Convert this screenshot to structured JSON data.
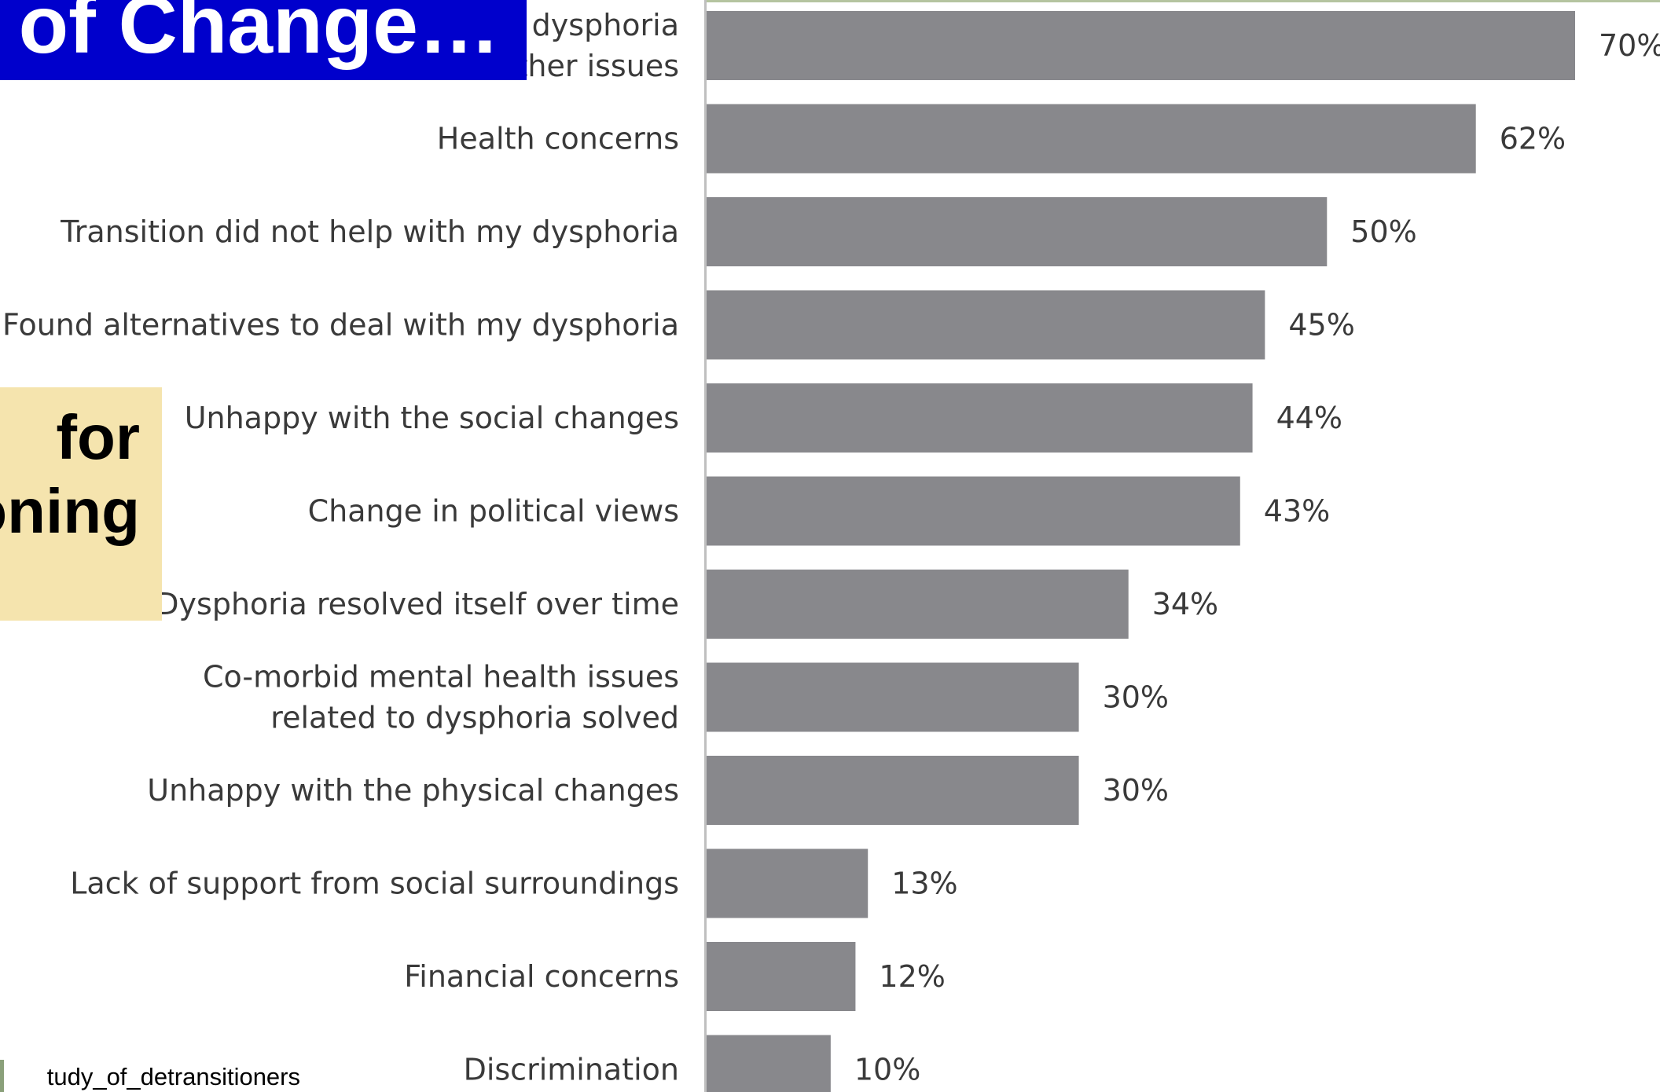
{
  "chart_data": {
    "type": "bar",
    "orientation": "horizontal",
    "categories": [
      [
        "dysphoria",
        "ther issues"
      ],
      [
        "Health concerns"
      ],
      [
        "Transition did not help with my dysphoria"
      ],
      [
        "Found alternatives to deal with my dysphoria"
      ],
      [
        "Unhappy with the social changes"
      ],
      [
        "Change in political views"
      ],
      [
        "Dysphoria resolved itself over time"
      ],
      [
        "Co-morbid mental health issues",
        "related to dysphoria solved"
      ],
      [
        "Unhappy with the physical changes"
      ],
      [
        "Lack of support from social surroundings"
      ],
      [
        "Financial concerns"
      ],
      [
        "Discrimination"
      ]
    ],
    "values": [
      70,
      62,
      50,
      45,
      44,
      43,
      34,
      30,
      30,
      13,
      12,
      10
    ],
    "value_labels": [
      "70%",
      "62%",
      "50%",
      "45%",
      "44%",
      "43%",
      "34%",
      "30%",
      "30%",
      "13%",
      "12%",
      "10%"
    ],
    "xlim": [
      0,
      70
    ],
    "bar_color": "#88888c",
    "axis_color": "#bfbfbf",
    "label_color": "#3a3a3a",
    "grid": false
  },
  "title_banner": {
    "text": "of Change…",
    "background": "#0000cc",
    "color": "#ffffff"
  },
  "side_box": {
    "line1": "for",
    "line2": "oning",
    "background": "#f5e4ae"
  },
  "source_note": "tudy_of_detransitioners"
}
